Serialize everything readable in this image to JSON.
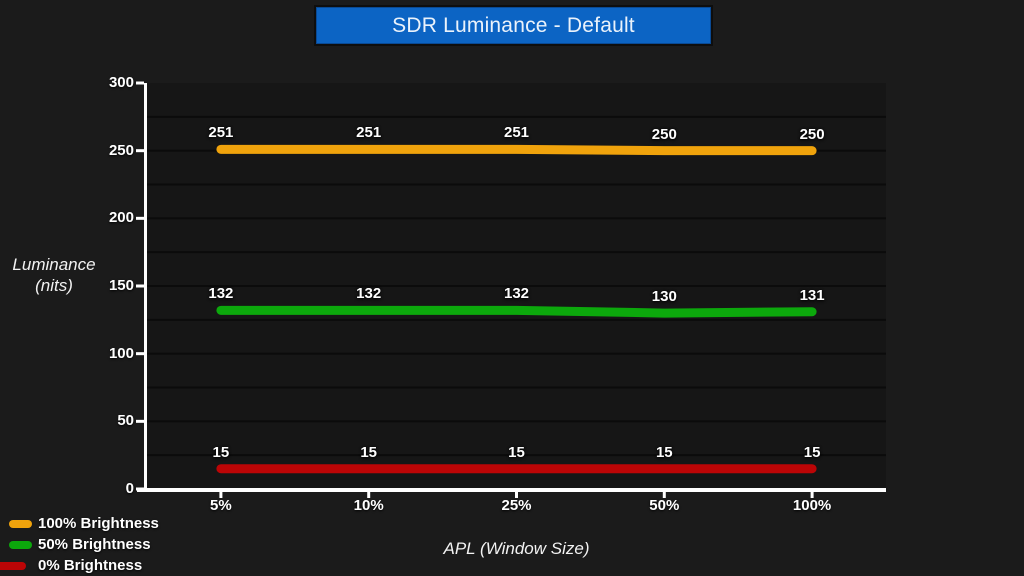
{
  "page": {
    "background": "#1B1B1B",
    "plot_background": "#161616",
    "gridline_color": "#0B0B0B",
    "axis_color": "#FFFFFF",
    "text_color": "#FFFFFF"
  },
  "title": {
    "text": "SDR Luminance - Default",
    "box_color": "#0C64C4",
    "text_color": "#EAF2FB"
  },
  "chart_data": {
    "type": "line",
    "title": "SDR Luminance - Default",
    "xlabel": "APL (Window Size)",
    "ylabel": "Luminance (nits)",
    "ylabel_lines": [
      "Luminance",
      "(nits)"
    ],
    "categories": [
      "5%",
      "10%",
      "25%",
      "50%",
      "100%"
    ],
    "series": [
      {
        "name": "100% Brightness",
        "color": "#F0A30C",
        "values": [
          251,
          251,
          251,
          250,
          250
        ]
      },
      {
        "name": "50% Brightness",
        "color": "#0CA80C",
        "values": [
          132,
          132,
          132,
          130,
          131
        ]
      },
      {
        "name": "0% Brightness",
        "color": "#BC0506",
        "values": [
          15,
          15,
          15,
          15,
          15
        ]
      }
    ],
    "ylim": [
      0,
      300
    ],
    "yticks": [
      0,
      50,
      100,
      150,
      200,
      250,
      300
    ],
    "grid_step": 25,
    "grid": true,
    "data_labels": true,
    "legend_position": "bottom-left"
  }
}
